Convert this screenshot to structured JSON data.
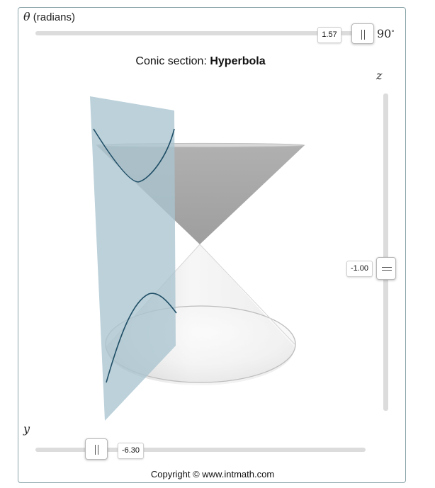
{
  "theta_slider": {
    "symbol": "θ",
    "label_suffix": " (radians)",
    "value": "1.57",
    "degree_value": "90",
    "degree_unit": "∘"
  },
  "title": {
    "prefix": "Conic section: ",
    "section_name": "Hyperbola"
  },
  "z_slider": {
    "label": "z",
    "value": "-1.00"
  },
  "y_slider": {
    "label": "y",
    "value": "-6.30"
  },
  "footer": {
    "copyright": "Copyright © www.intmath.com"
  },
  "colors": {
    "plane": "#a9c4cf",
    "upper_cone": "#a8a8a8",
    "curve": "#1f4e66",
    "track": "#dcdcdc"
  }
}
